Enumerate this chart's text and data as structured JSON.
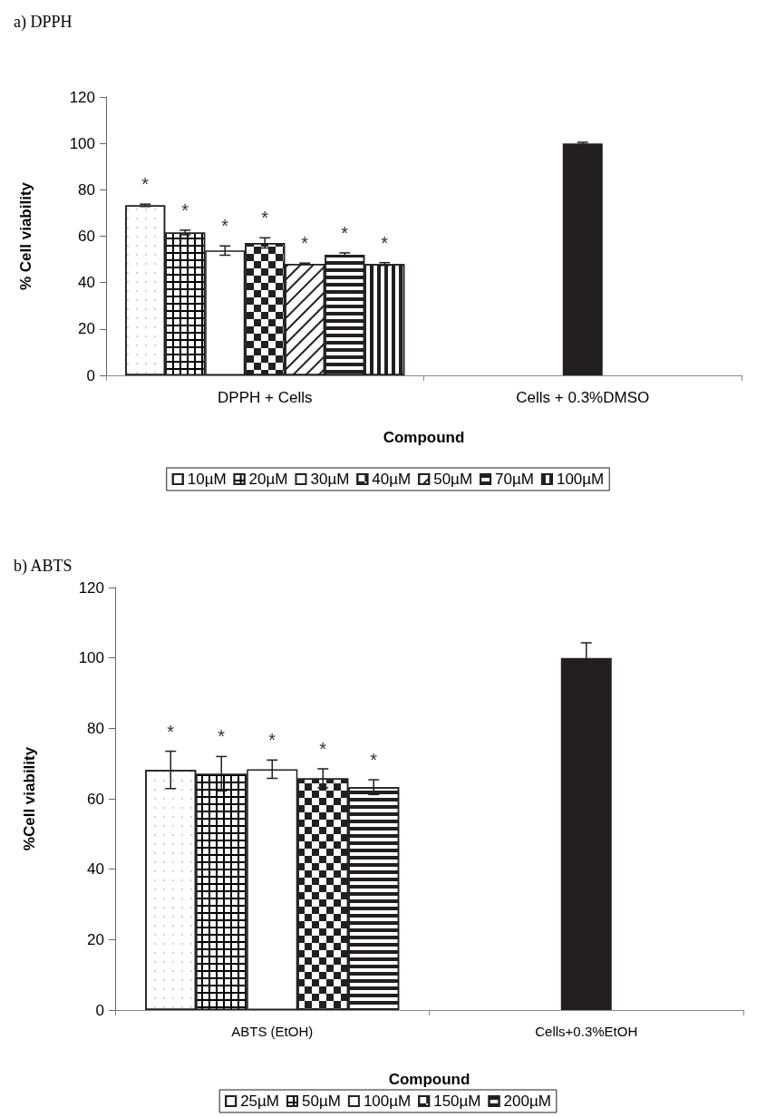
{
  "chart_data": [
    {
      "type": "bar",
      "title": "a) DPPH",
      "xlabel": "Compound",
      "ylabel": "% Cell viability",
      "categories": [
        "DPPH + Cells",
        "Cells + 0.3%DMSO"
      ],
      "ylim": [
        0,
        120
      ],
      "yticks": [
        0,
        20,
        40,
        60,
        80,
        100,
        120
      ],
      "legend": "bottom",
      "series": [
        {
          "name": "10µM",
          "color": "#ffffff",
          "values": [
            73.3,
            null
          ],
          "errors": [
            0.5,
            null
          ]
        },
        {
          "name": "20µM",
          "color": "#000000",
          "values": [
            61.6,
            null
          ],
          "errors": [
            1,
            null
          ]
        },
        {
          "name": "30µM",
          "color": "#ffffff",
          "values": [
            53.8,
            null
          ],
          "errors": [
            2,
            null
          ]
        },
        {
          "name": "40µM",
          "color": "#ffffff",
          "values": [
            57.1,
            null
          ],
          "errors": [
            2.2,
            null
          ]
        },
        {
          "name": "50µM",
          "color": "#ffffff",
          "values": [
            48.1,
            null
          ],
          "errors": [
            0.3,
            null
          ]
        },
        {
          "name": "70µM",
          "color": "#ffffff",
          "values": [
            52,
            null
          ],
          "errors": [
            0.8,
            null
          ]
        },
        {
          "name": "100µM",
          "color": "#ffffff",
          "values": [
            48,
            null
          ],
          "errors": [
            0.6,
            null
          ]
        },
        {
          "color": "#231f20",
          "values": [
            null,
            100
          ],
          "errors": [
            null,
            0.5
          ]
        }
      ],
      "annotations": [
        "*",
        "*",
        "*",
        "*",
        "*",
        "*",
        "*"
      ]
    },
    {
      "type": "bar",
      "title": "b) ABTS",
      "xlabel": "Compound",
      "ylabel": "%Cell viability",
      "categories": [
        "ABTS (EtOH)",
        "Cells+0.3%EtOH"
      ],
      "ylim": [
        0,
        120
      ],
      "yticks": [
        0,
        20,
        40,
        60,
        80,
        100,
        120
      ],
      "legend": "bottom",
      "series": [
        {
          "name": "25µM",
          "color": "#ffffff",
          "values": [
            68.2,
            null
          ],
          "errors": [
            5.3,
            null
          ]
        },
        {
          "name": "50µM",
          "color": "#000000",
          "values": [
            67.1,
            null
          ],
          "errors": [
            4.9,
            null
          ]
        },
        {
          "name": "100µM",
          "color": "#ffffff",
          "values": [
            68.4,
            null
          ],
          "errors": [
            2.6,
            null
          ]
        },
        {
          "name": "150µM",
          "color": "#ffffff",
          "values": [
            65.8,
            null
          ],
          "errors": [
            2.7,
            null
          ]
        },
        {
          "name": "200µM",
          "color": "#ffffff",
          "values": [
            63.3,
            null
          ],
          "errors": [
            2.1,
            null
          ]
        },
        {
          "color": "#231f20",
          "values": [
            null,
            100
          ],
          "errors": [
            null,
            4.3
          ]
        }
      ],
      "annotations": [
        "*",
        "*",
        "*",
        "*",
        "*"
      ]
    }
  ]
}
